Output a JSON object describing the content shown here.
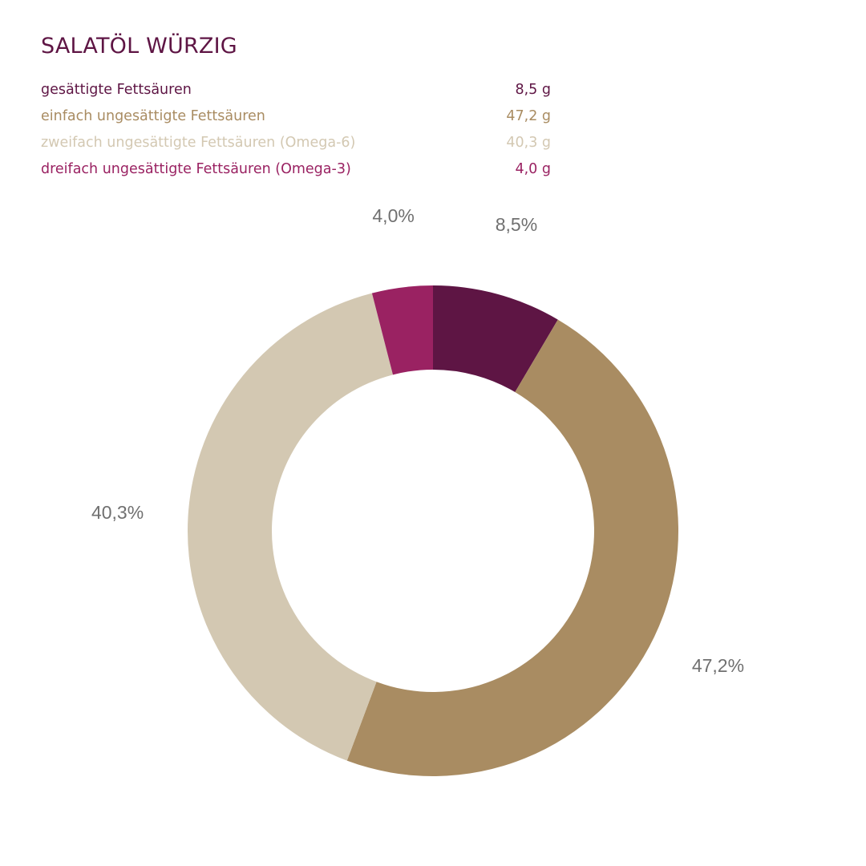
{
  "chart_data": {
    "type": "pie",
    "variant": "donut",
    "title": "SALATÖL WÜRZIG",
    "title_color": "#5e1544",
    "unit": "g",
    "slices": [
      {
        "name": "gesättigte Fettsäuren",
        "value": 8.5,
        "amount_label": "8,5 g",
        "percent_label": "8,5%",
        "color": "#5e1544"
      },
      {
        "name": "einfach ungesättigte Fettsäuren",
        "value": 47.2,
        "amount_label": "47,2 g",
        "percent_label": "47,2%",
        "color": "#a98c62"
      },
      {
        "name": "zweifach ungesättigte Fettsäuren (Omega-6)",
        "value": 40.3,
        "amount_label": "40,3 g",
        "percent_label": "40,3%",
        "color": "#d3c8b2"
      },
      {
        "name": "dreifach ungesättigte Fettsäuren (Omega-3)",
        "value": 4.0,
        "amount_label": "4,0 g",
        "percent_label": "4,0%",
        "color": "#9a2262"
      }
    ],
    "start_angle": "12 o'clock",
    "direction": "clockwise",
    "legend_placement": "top-left",
    "grid": false
  }
}
